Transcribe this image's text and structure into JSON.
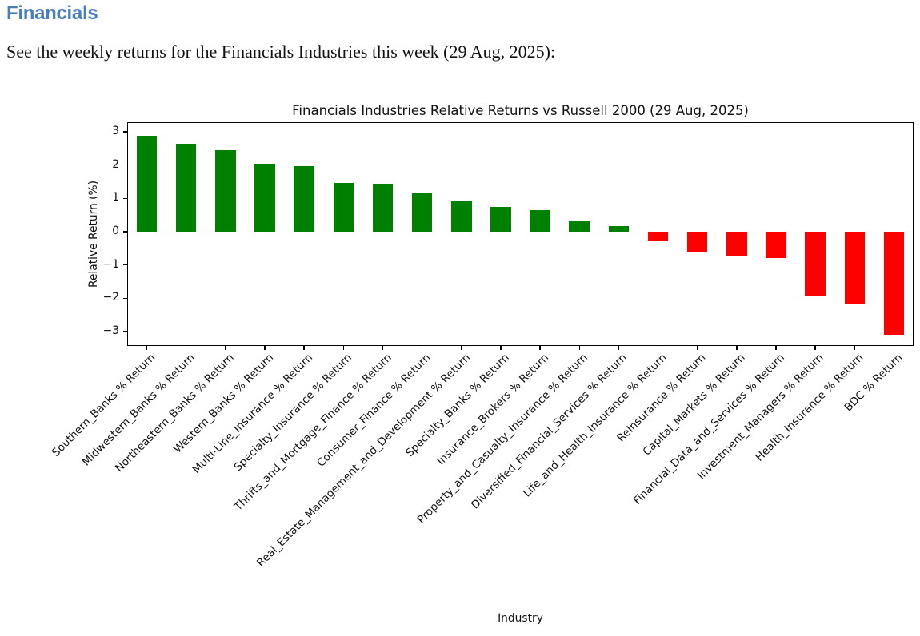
{
  "page": {
    "heading": "Financials",
    "subtitle": "See the weekly returns for the Financials Industries this week (29 Aug, 2025):"
  },
  "colors": {
    "heading_blue": "#4a7ebb",
    "positive_green": "#008000",
    "negative_red": "#ff0000",
    "axis_black": "#000000"
  },
  "chart_data": {
    "type": "bar",
    "title": "Financials Industries Relative Returns vs Russell 2000 (29 Aug, 2025)",
    "xlabel": "Industry",
    "ylabel": "Relative Return (%)",
    "ylim": [
      -3.43,
      3.29
    ],
    "yticks": [
      3,
      2,
      1,
      0,
      -1,
      -2,
      -3
    ],
    "grid": false,
    "legend_position": "none",
    "bar_color_rule": "green for positive returns, red for negative returns",
    "categories": [
      "Southern_Banks % Return",
      "Midwestern_Banks % Return",
      "Northeastern_Banks % Return",
      "Western_Banks % Return",
      "Multi-Line_Insurance % Return",
      "Specialty_Insurance % Return",
      "Thrifts_and_Mortgage_Finance % Return",
      "Consumer_Finance % Return",
      "Real_Estate_Management_and_Development % Return",
      "Specialty_Banks % Return",
      "Insurance_Brokers % Return",
      "Property_and_Casualty_Insurance % Return",
      "Diversified_Financial_Services % Return",
      "Life_and_Health_Insurance % Return",
      "ReInsurance % Return",
      "Capital_Markets % Return",
      "Financial_Data_and_Services % Return",
      "Investment_Managers % Return",
      "Health_Insurance % Return",
      "BDC % Return"
    ],
    "values": [
      2.89,
      2.64,
      2.45,
      2.05,
      1.96,
      1.46,
      1.44,
      1.19,
      0.92,
      0.74,
      0.64,
      0.35,
      0.17,
      -0.28,
      -0.6,
      -0.72,
      -0.78,
      -1.92,
      -2.16,
      -3.1
    ]
  }
}
